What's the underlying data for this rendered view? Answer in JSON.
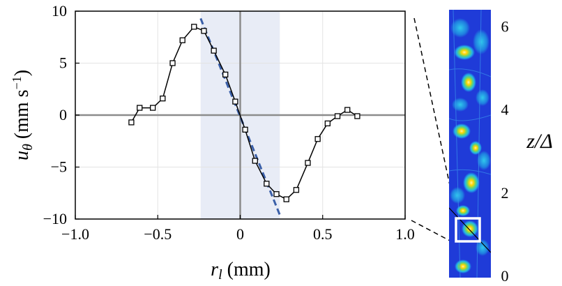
{
  "chart_data": {
    "type": "line",
    "xlabel": "r_l (mm)",
    "ylabel": "u_θ (mm s⁻¹)",
    "xlim": [
      -1.0,
      1.0
    ],
    "ylim": [
      -10,
      10
    ],
    "x_ticks": [
      -1.0,
      -0.5,
      0,
      0.5,
      1.0
    ],
    "x_tick_labels": [
      "−1.0",
      "−0.5",
      "0",
      "0.5",
      "1.0"
    ],
    "y_ticks": [
      -10,
      -5,
      0,
      5,
      10
    ],
    "y_tick_labels": [
      "−10",
      "−5",
      "0",
      "5",
      "10"
    ],
    "grid": true,
    "shaded_band_x": [
      -0.24,
      0.24
    ],
    "series": [
      {
        "style": "black line with open square markers",
        "x": [
          -0.66,
          -0.61,
          -0.53,
          -0.47,
          -0.41,
          -0.35,
          -0.28,
          -0.22,
          -0.16,
          -0.09,
          -0.03,
          0.03,
          0.09,
          0.16,
          0.22,
          0.28,
          0.34,
          0.41,
          0.47,
          0.53,
          0.59,
          0.65,
          0.71
        ],
        "y": [
          -0.7,
          0.7,
          0.7,
          1.6,
          5.0,
          7.2,
          8.5,
          8.1,
          6.2,
          3.9,
          1.3,
          -1.4,
          -4.4,
          -6.6,
          -7.6,
          -8.1,
          -7.2,
          -4.6,
          -2.3,
          -0.8,
          -0.1,
          0.5,
          -0.1
        ]
      },
      {
        "style": "blue dashed linear fit",
        "x": [
          -0.24,
          0.24
        ],
        "y": [
          9.3,
          -9.6
        ]
      }
    ],
    "colors": {
      "fit_line": "#3a5fa8",
      "band": "#e8ecf6",
      "marker": "#000000",
      "zero_lines": "#8c8c8c"
    }
  },
  "inset": {
    "label": "z/Δ",
    "tick_labels": [
      "0",
      "2",
      "4",
      "6"
    ],
    "tick_values": [
      0,
      2,
      4,
      6
    ],
    "colormap": "jet"
  }
}
